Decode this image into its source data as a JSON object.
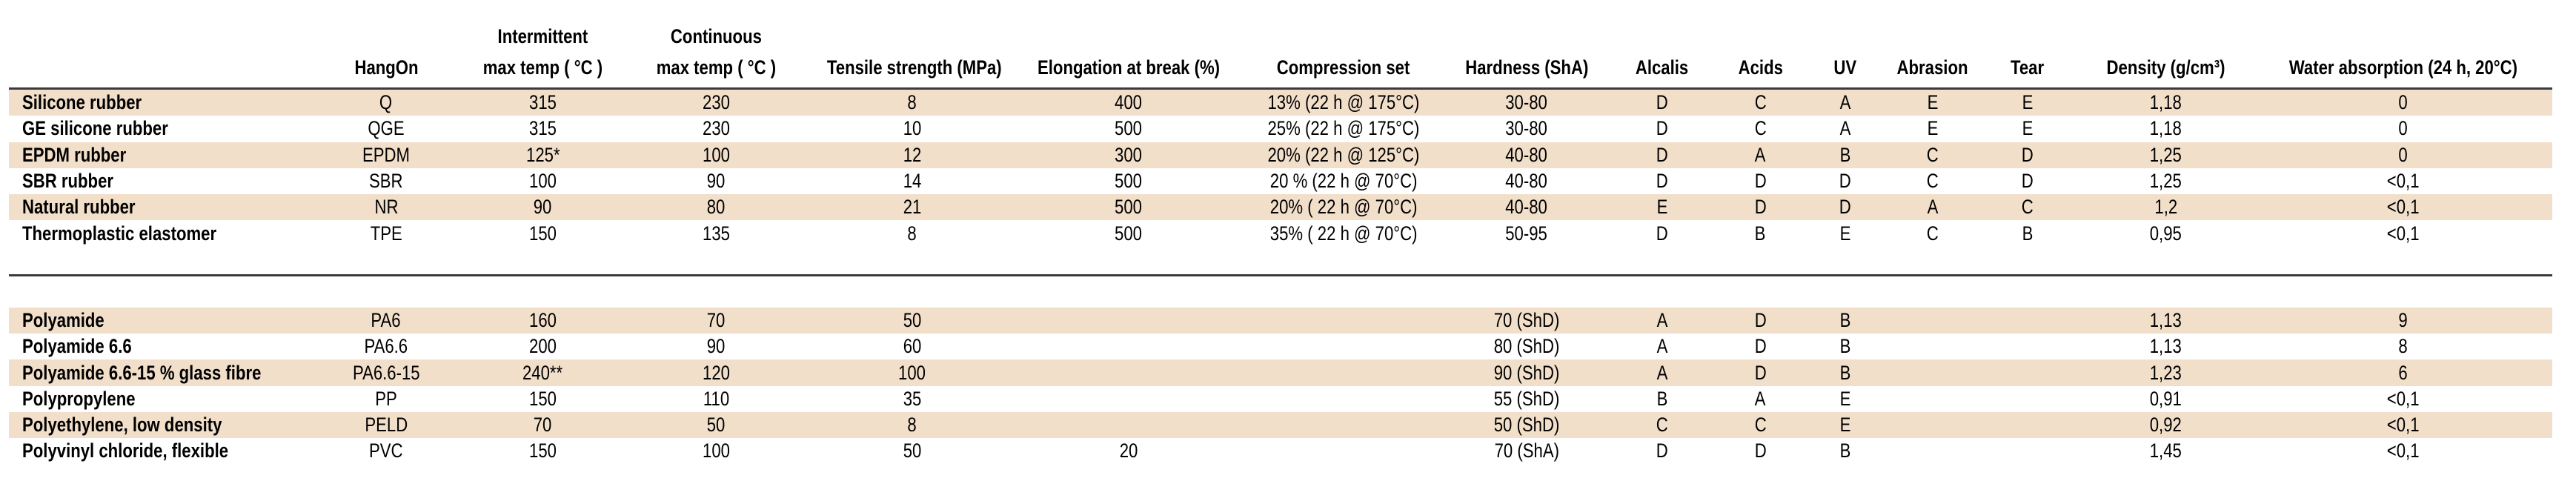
{
  "colors": {
    "row_band": "#f2dfca",
    "rule": "#3b3b3b",
    "text": "#000000",
    "background": "#ffffff"
  },
  "table": {
    "columns": [
      {
        "key": "material",
        "align": "left",
        "lines": [
          ""
        ]
      },
      {
        "key": "hangon",
        "align": "center",
        "lines": [
          "HangOn"
        ]
      },
      {
        "key": "intermittent-max-temp",
        "align": "center",
        "lines": [
          "Intermittent",
          "max temp ( °C )"
        ]
      },
      {
        "key": "continuous-max-temp",
        "align": "center",
        "lines": [
          "Continuous",
          "max temp ( °C )"
        ]
      },
      {
        "key": "tensile-strength",
        "align": "center",
        "lines": [
          "Tensile strength (MPa)"
        ]
      },
      {
        "key": "elongation-at-break",
        "align": "center",
        "lines": [
          "Elongation at break (%)"
        ]
      },
      {
        "key": "compression-set",
        "align": "center",
        "lines": [
          "Compression set"
        ]
      },
      {
        "key": "hardness",
        "align": "center",
        "lines": [
          "Hardness (ShA)"
        ]
      },
      {
        "key": "alcalis",
        "align": "center",
        "lines": [
          "Alcalis"
        ]
      },
      {
        "key": "acids",
        "align": "center",
        "lines": [
          "Acids"
        ]
      },
      {
        "key": "uv",
        "align": "center",
        "lines": [
          "UV"
        ]
      },
      {
        "key": "abrasion",
        "align": "center",
        "lines": [
          "Abrasion"
        ]
      },
      {
        "key": "tear",
        "align": "center",
        "lines": [
          "Tear"
        ]
      },
      {
        "key": "density",
        "align": "center",
        "lines": [
          "Density (g/cm³)"
        ]
      },
      {
        "key": "water-absorption",
        "align": "center",
        "lines": [
          "Water absorption (24 h, 20°C)"
        ]
      }
    ],
    "groups": [
      {
        "rows": [
          {
            "cells": [
              "Silicone rubber",
              "Q",
              "315",
              "230",
              "8",
              "400",
              "13% (22 h @ 175°C)",
              "30-80",
              "D",
              "C",
              "A",
              "E",
              "E",
              "1,18",
              "0"
            ]
          },
          {
            "cells": [
              "GE silicone rubber",
              "QGE",
              "315",
              "230",
              "10",
              "500",
              "25% (22 h @ 175°C)",
              "30-80",
              "D",
              "C",
              "A",
              "E",
              "E",
              "1,18",
              "0"
            ]
          },
          {
            "cells": [
              "EPDM rubber",
              "EPDM",
              "125*",
              "100",
              "12",
              "300",
              "20% (22 h @ 125°C)",
              "40-80",
              "D",
              "A",
              "B",
              "C",
              "D",
              "1,25",
              "0"
            ]
          },
          {
            "cells": [
              "SBR rubber",
              "SBR",
              "100",
              "90",
              "14",
              "500",
              "20 % (22 h @ 70°C)",
              "40-80",
              "D",
              "D",
              "D",
              "C",
              "D",
              "1,25",
              "<0,1"
            ]
          },
          {
            "cells": [
              "Natural rubber",
              "NR",
              "90",
              "80",
              "21",
              "500",
              "20% ( 22 h @ 70°C)",
              "40-80",
              "E",
              "D",
              "D",
              "A",
              "C",
              "1,2",
              "<0,1"
            ]
          },
          {
            "cells": [
              "Thermoplastic elastomer",
              "TPE",
              "150",
              "135",
              "8",
              "500",
              "35% ( 22 h @ 70°C)",
              "50-95",
              "D",
              "B",
              "E",
              "C",
              "B",
              "0,95",
              "<0,1"
            ]
          }
        ]
      },
      {
        "rows": [
          {
            "cells": [
              "Polyamide",
              "PA6",
              "160",
              "70",
              "50",
              "",
              "",
              "70 (ShD)",
              "A",
              "D",
              "B",
              "",
              "",
              "1,13",
              "9"
            ]
          },
          {
            "cells": [
              "Polyamide 6.6",
              "PA6.6",
              "200",
              "90",
              "60",
              "",
              "",
              "80 (ShD)",
              "A",
              "D",
              "B",
              "",
              "",
              "1,13",
              "8"
            ]
          },
          {
            "cells": [
              "Polyamide 6.6-15 % glass fibre",
              "PA6.6-15",
              "240**",
              "120",
              "100",
              "",
              "",
              "90 (ShD)",
              "A",
              "D",
              "B",
              "",
              "",
              "1,23",
              "6"
            ]
          },
          {
            "cells": [
              "Polypropylene",
              "PP",
              "150",
              "110",
              "35",
              "",
              "",
              "55 (ShD)",
              "B",
              "A",
              "E",
              "",
              "",
              "0,91",
              "<0,1"
            ]
          },
          {
            "cells": [
              "Polyethylene, low density",
              "PELD",
              "70",
              "50",
              "8",
              "",
              "",
              "50 (ShD)",
              "C",
              "C",
              "E",
              "",
              "",
              "0,92",
              "<0,1"
            ]
          },
          {
            "cells": [
              "Polyvinyl chloride, flexible",
              "PVC",
              "150",
              "100",
              "50",
              "20",
              "",
              "70 (ShA)",
              "D",
              "D",
              "B",
              "",
              "",
              "1,45",
              "<0,1"
            ]
          }
        ]
      }
    ]
  }
}
